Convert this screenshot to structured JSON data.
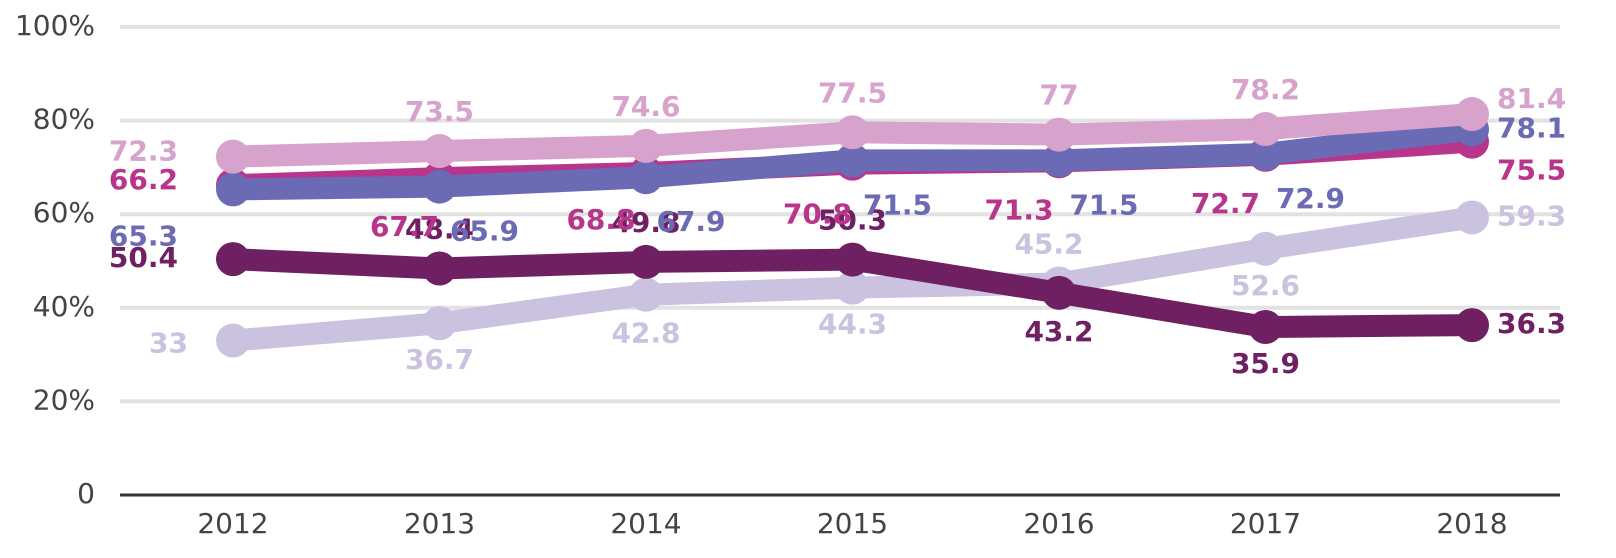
{
  "chart_data": {
    "type": "line",
    "categories": [
      "2012",
      "2013",
      "2014",
      "2015",
      "2016",
      "2017",
      "2018"
    ],
    "series": [
      {
        "color": "#cbc2e0",
        "values": [
          33,
          36.7,
          42.8,
          44.3,
          45.2,
          52.6,
          59.3
        ]
      },
      {
        "color": "#6e2063",
        "values": [
          50.4,
          48.4,
          49.8,
          50.3,
          43.2,
          35.9,
          36.3
        ]
      },
      {
        "color": "#b8358c",
        "values": [
          66.2,
          67.7,
          68.8,
          70.8,
          71.3,
          72.7,
          75.5
        ]
      },
      {
        "color": "#6a6bb4",
        "values": [
          65.3,
          65.9,
          67.9,
          71.5,
          71.5,
          72.9,
          78.1
        ]
      },
      {
        "color": "#d7a2cc",
        "values": [
          72.3,
          73.5,
          74.6,
          77.5,
          77,
          78.2,
          81.4
        ]
      }
    ],
    "ylim": [
      0,
      100
    ],
    "yticks": [
      0,
      {
        "value": 20,
        "label": "20%"
      },
      {
        "value": 40,
        "label": "40%"
      },
      {
        "value": 60,
        "label": "60%"
      },
      {
        "value": 80,
        "label": "80%"
      },
      {
        "value": 100,
        "label": "100%"
      }
    ],
    "grid": true
  }
}
